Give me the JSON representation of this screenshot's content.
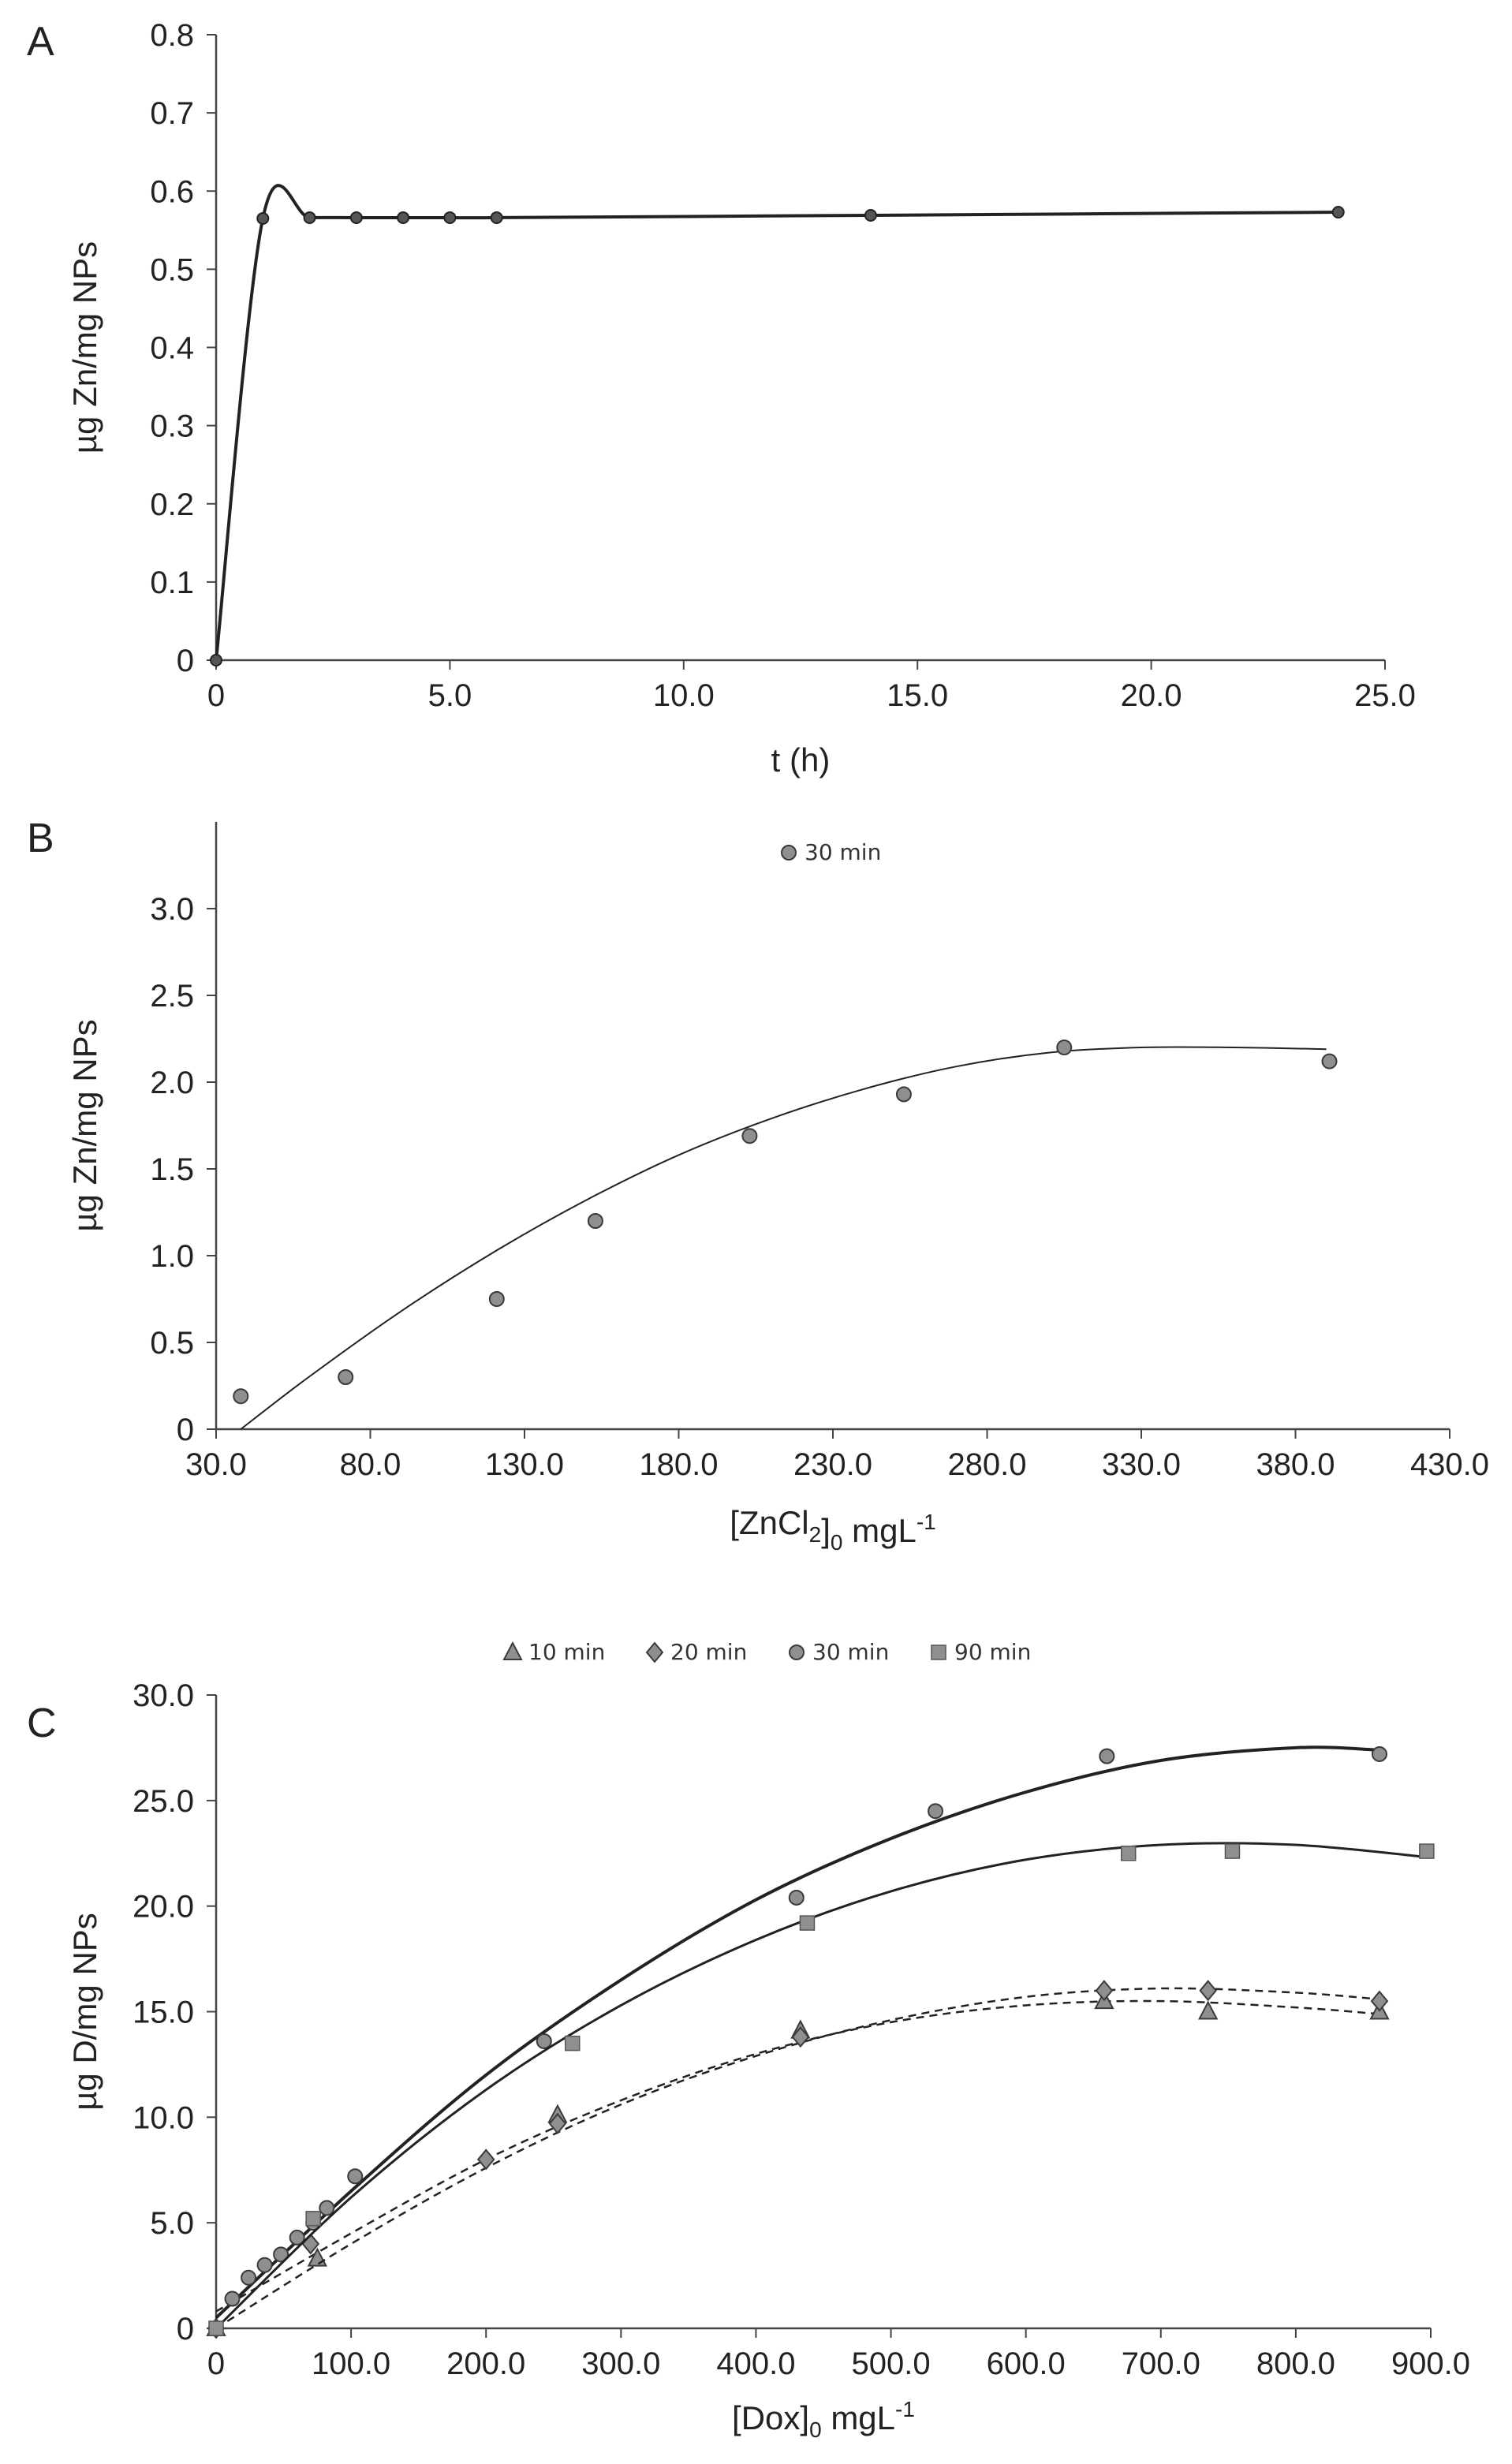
{
  "chart_data": [
    {
      "panel": "A",
      "type": "line",
      "xlabel": "t (h)",
      "ylabel": "µg Zn/mg NPs",
      "xlim": [
        0,
        25
      ],
      "ylim": [
        0,
        0.8
      ],
      "x_ticks": [
        "0",
        "5.0",
        "10.0",
        "15.0",
        "20.0",
        "25.0"
      ],
      "y_ticks": [
        "0",
        "0.1",
        "0.2",
        "0.3",
        "0.4",
        "0.5",
        "0.6",
        "0.7",
        "0.8"
      ],
      "grid": false,
      "series": [
        {
          "x": [
            0,
            1,
            2,
            3,
            4,
            5,
            6,
            14,
            24
          ],
          "y": [
            0,
            0.565,
            0.566,
            0.566,
            0.566,
            0.566,
            0.566,
            0.569,
            0.573
          ]
        }
      ]
    },
    {
      "panel": "B",
      "type": "scatter",
      "xlabel": "[ZnCl2]0 mgL-1",
      "ylabel": "µg Zn/mg NPs",
      "xlim": [
        30,
        430
      ],
      "ylim": [
        0,
        3.5
      ],
      "x_ticks": [
        "30.0",
        "80.0",
        "130.0",
        "180.0",
        "230.0",
        "280.0",
        "330.0",
        "380.0",
        "430.0"
      ],
      "y_ticks": [
        "0",
        "0.5",
        "1.0",
        "1.5",
        "2.0",
        "2.5",
        "3.0"
      ],
      "legend": [
        "30 min"
      ],
      "legend_position": "top-center",
      "grid": false,
      "series": [
        {
          "name": "30 min",
          "x": [
            38,
            72,
            121,
            153,
            203,
            253,
            305,
            391
          ],
          "y": [
            0.19,
            0.3,
            0.75,
            1.2,
            1.69,
            1.93,
            2.2,
            2.12
          ],
          "trend_x": [
            38,
            60,
            90,
            120,
            150,
            180,
            210,
            240,
            270,
            300,
            330,
            360,
            390
          ],
          "trend_y": [
            0.0,
            0.3,
            0.68,
            1.02,
            1.32,
            1.58,
            1.79,
            1.96,
            2.09,
            2.17,
            2.2,
            2.2,
            2.19
          ]
        }
      ]
    },
    {
      "panel": "C",
      "type": "scatter",
      "xlabel": "[Dox]0 mgL-1",
      "ylabel": "µg D/mg NPs",
      "xlim": [
        0,
        900
      ],
      "ylim": [
        0,
        30
      ],
      "x_ticks": [
        "0",
        "100.0",
        "200.0",
        "300.0",
        "400.0",
        "500.0",
        "600.0",
        "700.0",
        "800.0",
        "900.0"
      ],
      "y_ticks": [
        "0",
        "5.0",
        "10.0",
        "15.0",
        "20.0",
        "25.0",
        "30.0"
      ],
      "legend": [
        "10 min",
        "20 min",
        "30 min",
        "90 min"
      ],
      "legend_position": "top-center",
      "grid": false,
      "series": [
        {
          "name": "10 min",
          "x": [
            0,
            75,
            253,
            433,
            658,
            735,
            862
          ],
          "y": [
            0,
            3.3,
            10.1,
            14.1,
            15.5,
            15.0,
            15.0
          ],
          "trend_x": [
            0,
            100,
            200,
            300,
            400,
            500,
            600,
            700,
            800,
            860
          ],
          "trend_y": [
            0.8,
            4.5,
            8.0,
            10.8,
            13.0,
            14.5,
            15.3,
            15.5,
            15.2,
            14.9
          ]
        },
        {
          "name": "20 min",
          "x": [
            0,
            70,
            200,
            253,
            433,
            658,
            735,
            862
          ],
          "y": [
            0,
            4.0,
            8.0,
            9.7,
            13.8,
            16.0,
            16.0,
            15.5
          ],
          "trend_x": [
            0,
            100,
            200,
            300,
            400,
            500,
            600,
            700,
            800,
            860
          ],
          "trend_y": [
            0,
            4.0,
            7.6,
            10.6,
            12.9,
            14.6,
            15.7,
            16.1,
            15.9,
            15.6
          ]
        },
        {
          "name": "30 min",
          "x": [
            0,
            12,
            24,
            36,
            48,
            60,
            72,
            82,
            103,
            243,
            430,
            533,
            660,
            862
          ],
          "y": [
            0,
            1.4,
            2.4,
            3.0,
            3.5,
            4.3,
            5.0,
            5.7,
            7.2,
            13.6,
            20.4,
            24.5,
            27.1,
            27.2
          ],
          "trend_x": [
            0,
            100,
            200,
            300,
            400,
            500,
            600,
            700,
            800,
            860
          ],
          "trend_y": [
            0.5,
            6.5,
            12.0,
            16.5,
            20.3,
            23.2,
            25.4,
            26.9,
            27.5,
            27.4
          ]
        },
        {
          "name": "90 min",
          "x": [
            0,
            72,
            264,
            438,
            676,
            753,
            897
          ],
          "y": [
            0,
            5.2,
            13.5,
            19.2,
            22.5,
            22.6,
            22.6
          ],
          "trend_x": [
            0,
            100,
            200,
            300,
            400,
            500,
            600,
            700,
            800,
            900
          ],
          "trend_y": [
            0,
            6.2,
            11.3,
            15.3,
            18.4,
            20.7,
            22.2,
            22.9,
            22.9,
            22.3
          ]
        }
      ]
    }
  ]
}
